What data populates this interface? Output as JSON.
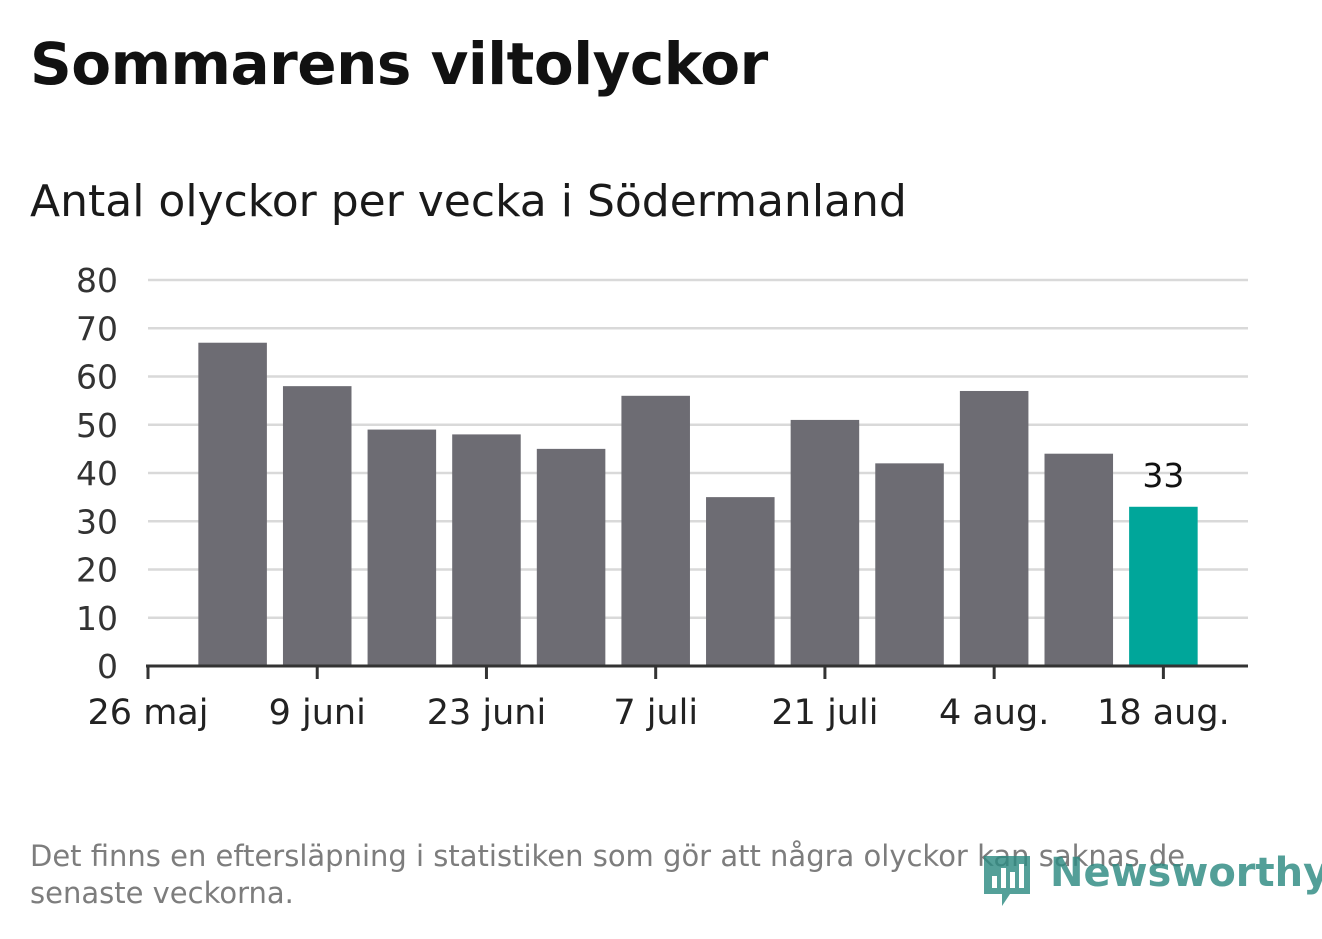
{
  "title": "Sommarens viltolyckor",
  "subtitle": "Antal olyckor per vecka i Södermanland",
  "footnote": "Det finns en eftersläpning i statistiken som gör att några olyckor kan saknas de senaste veckorna.",
  "logo": {
    "text": "Newsworthy",
    "icon": "bar-chart-pin-icon"
  },
  "colors": {
    "bar": "#6d6c73",
    "highlight": "#00a69a",
    "grid": "#d9d9d9",
    "axis": "#333333"
  },
  "chart_data": {
    "type": "bar",
    "values": [
      67,
      58,
      49,
      48,
      45,
      56,
      35,
      51,
      42,
      57,
      44,
      33
    ],
    "highlight_index": 11,
    "data_labels": [
      {
        "index": 11,
        "text": "33"
      }
    ],
    "yticks": [
      "0",
      "10",
      "20",
      "30",
      "40",
      "50",
      "60",
      "70",
      "80"
    ],
    "ylim": [
      0,
      80
    ],
    "xticks": [
      "26 maj",
      "9 juni",
      "23 juni",
      "7 juli",
      "21 juli",
      "4 aug.",
      "18 aug."
    ],
    "grid": true,
    "legend": "none"
  }
}
